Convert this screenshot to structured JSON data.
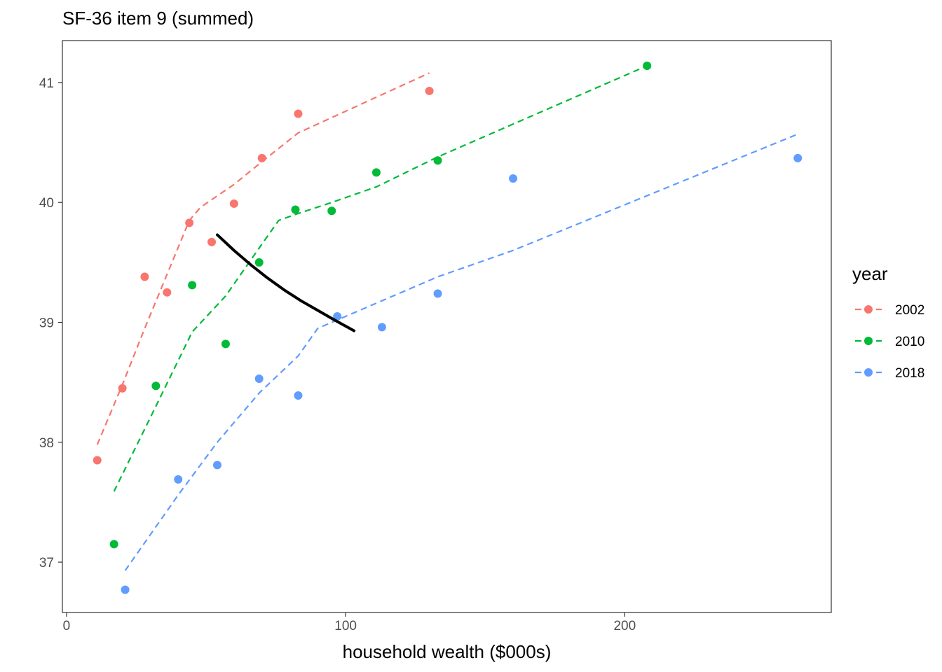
{
  "chart_data": {
    "type": "scatter",
    "title": "SF-36 item 9 (summed)",
    "xlabel": "household wealth ($000s)",
    "ylabel": "",
    "xlim": [
      -1.5,
      274
    ],
    "ylim": [
      36.58,
      41.35
    ],
    "x_ticks": [
      0,
      100,
      200
    ],
    "y_ticks": [
      37,
      38,
      39,
      40,
      41
    ],
    "grid": false,
    "legend": {
      "title": "year",
      "position": "right"
    },
    "series": [
      {
        "name": "2002",
        "color": "#F8766D",
        "points": [
          [
            11,
            37.85
          ],
          [
            20,
            38.45
          ],
          [
            28,
            39.38
          ],
          [
            36,
            39.25
          ],
          [
            44,
            39.83
          ],
          [
            52,
            39.67
          ],
          [
            60,
            39.99
          ],
          [
            70,
            40.37
          ],
          [
            83,
            40.74
          ],
          [
            130,
            40.93
          ]
        ],
        "trend": [
          [
            11,
            37.98
          ],
          [
            20,
            38.48
          ],
          [
            28,
            38.95
          ],
          [
            36,
            39.4
          ],
          [
            44,
            39.85
          ],
          [
            48,
            39.96
          ],
          [
            60,
            40.15
          ],
          [
            70,
            40.34
          ],
          [
            83,
            40.58
          ],
          [
            130,
            41.08
          ]
        ]
      },
      {
        "name": "2010",
        "color": "#00BA38",
        "points": [
          [
            17,
            37.15
          ],
          [
            32,
            38.47
          ],
          [
            45,
            39.31
          ],
          [
            57,
            38.82
          ],
          [
            69,
            39.5
          ],
          [
            82,
            39.94
          ],
          [
            95,
            39.93
          ],
          [
            111,
            40.25
          ],
          [
            133,
            40.35
          ],
          [
            208,
            41.14
          ]
        ],
        "trend": [
          [
            17,
            37.59
          ],
          [
            32,
            38.3
          ],
          [
            45,
            38.92
          ],
          [
            57,
            39.22
          ],
          [
            69,
            39.62
          ],
          [
            76,
            39.85
          ],
          [
            82,
            39.9
          ],
          [
            95,
            40.0
          ],
          [
            111,
            40.13
          ],
          [
            133,
            40.38
          ],
          [
            208,
            41.14
          ]
        ]
      },
      {
        "name": "2018",
        "color": "#619CFF",
        "points": [
          [
            21,
            36.77
          ],
          [
            40,
            37.69
          ],
          [
            54,
            37.81
          ],
          [
            69,
            38.53
          ],
          [
            83,
            38.39
          ],
          [
            97,
            39.05
          ],
          [
            113,
            38.96
          ],
          [
            133,
            39.24
          ],
          [
            160,
            40.2
          ],
          [
            262,
            40.37
          ]
        ],
        "trend": [
          [
            21,
            36.93
          ],
          [
            40,
            37.56
          ],
          [
            54,
            38.0
          ],
          [
            69,
            38.41
          ],
          [
            83,
            38.72
          ],
          [
            90,
            38.95
          ],
          [
            97,
            39.02
          ],
          [
            113,
            39.18
          ],
          [
            133,
            39.38
          ],
          [
            160,
            39.6
          ],
          [
            262,
            40.57
          ]
        ]
      }
    ],
    "overlay_curve": {
      "color": "#000000",
      "points": [
        [
          54,
          39.73
        ],
        [
          60,
          39.6
        ],
        [
          66,
          39.48
        ],
        [
          72,
          39.37
        ],
        [
          78,
          39.27
        ],
        [
          84,
          39.18
        ],
        [
          90,
          39.1
        ],
        [
          96,
          39.02
        ],
        [
          103,
          38.93
        ]
      ]
    }
  }
}
